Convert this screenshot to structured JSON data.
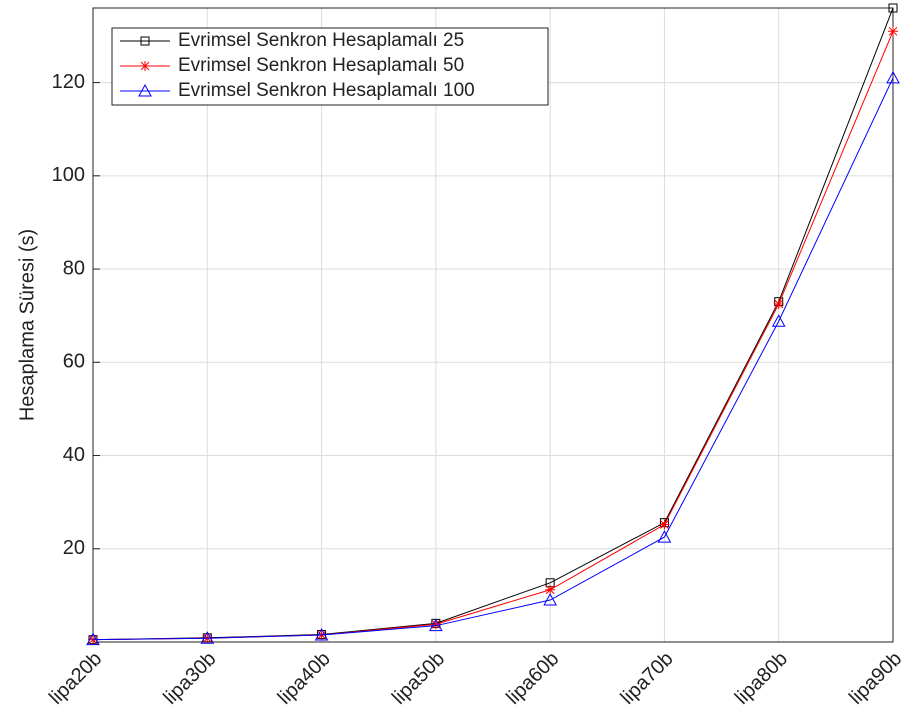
{
  "chart_data": {
    "type": "line",
    "y_label": "Hesaplama Süresi (s)",
    "categories": [
      "lipa20b",
      "lipa30b",
      "lipa40b",
      "lipa50b",
      "lipa60b",
      "lipa70b",
      "lipa80b",
      "lipa90b"
    ],
    "series": [
      {
        "name": "Evrimsel Senkron Hesaplamalı 25",
        "color": "#000000",
        "marker": "square",
        "values": [
          0.5,
          0.9,
          1.6,
          4,
          12.7,
          25.6,
          73,
          136
        ]
      },
      {
        "name": "Evrimsel Senkron Hesaplamalı 50",
        "color": "#ff0000",
        "marker": "asterisk",
        "values": [
          0.5,
          0.8,
          1.5,
          3.8,
          11.2,
          25.2,
          72.5,
          131
        ]
      },
      {
        "name": "Evrimsel Senkron Hesaplamalı 100",
        "color": "#0000ff",
        "marker": "triangle",
        "values": [
          0.5,
          0.8,
          1.5,
          3.5,
          9,
          22.5,
          68.8,
          121
        ]
      }
    ],
    "ylim": [
      0,
      136
    ],
    "yticks": [
      20,
      40,
      60,
      80,
      100,
      120
    ],
    "grid": true,
    "legend": "top-left"
  }
}
